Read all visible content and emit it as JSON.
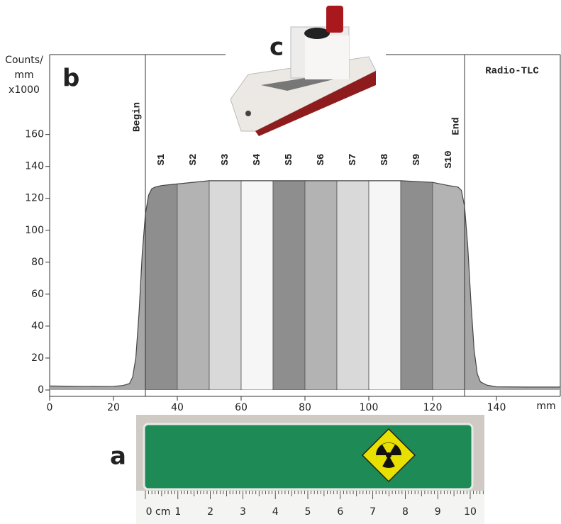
{
  "chart_data": {
    "type": "area",
    "y_label": "Counts/\nmm\nx1000",
    "x_unit": "mm",
    "title": "Radio-TLC",
    "panel_label": "b",
    "x": [
      0,
      5,
      10,
      15,
      20,
      23,
      25,
      26,
      27,
      28,
      29,
      30,
      31,
      32,
      33,
      35,
      40,
      50,
      60,
      70,
      80,
      90,
      100,
      110,
      120,
      125,
      128,
      129,
      130,
      131,
      132,
      133,
      134,
      135,
      137,
      140,
      150,
      160
    ],
    "values": [
      2.5,
      2.4,
      2.3,
      2.2,
      2.3,
      2.8,
      4,
      8,
      20,
      48,
      85,
      110,
      122,
      126,
      127,
      128,
      129,
      131,
      131,
      131,
      131,
      131,
      131,
      131,
      130,
      128,
      127,
      125,
      115,
      90,
      55,
      25,
      10,
      5,
      3,
      2,
      1.8,
      1.8
    ],
    "color": "#444444",
    "fill": "#a6a6a6",
    "markers": [
      {
        "label": "Begin",
        "x": 30
      },
      {
        "label": "End",
        "x": 130
      }
    ],
    "regions": [
      {
        "name": "S1",
        "start": 30,
        "end": 40,
        "color": "#8e8e8e"
      },
      {
        "name": "S2",
        "start": 40,
        "end": 50,
        "color": "#b3b3b3"
      },
      {
        "name": "S3",
        "start": 50,
        "end": 60,
        "color": "#d9d9d9"
      },
      {
        "name": "S4",
        "start": 60,
        "end": 70,
        "color": "#f6f6f6"
      },
      {
        "name": "S5",
        "start": 70,
        "end": 80,
        "color": "#8e8e8e"
      },
      {
        "name": "S6",
        "start": 80,
        "end": 90,
        "color": "#b3b3b3"
      },
      {
        "name": "S7",
        "start": 90,
        "end": 100,
        "color": "#d9d9d9"
      },
      {
        "name": "S8",
        "start": 100,
        "end": 110,
        "color": "#f6f6f6"
      },
      {
        "name": "S9",
        "start": 110,
        "end": 120,
        "color": "#8e8e8e"
      },
      {
        "name": "S10",
        "start": 120,
        "end": 130,
        "color": "#b3b3b3"
      }
    ],
    "xlim": [
      0,
      160
    ],
    "xticks": [
      0,
      20,
      40,
      60,
      80,
      100,
      120,
      140
    ],
    "ylim": [
      -4,
      210
    ],
    "yticks": [
      0,
      20,
      40,
      60,
      80,
      100,
      120,
      140,
      160
    ]
  },
  "photo_plate": {
    "label": "a",
    "ruler_labels": [
      "0 cm",
      "1",
      "2",
      "3",
      "4",
      "5",
      "6",
      "7",
      "8",
      "9",
      "10"
    ]
  },
  "photo_device": {
    "label": "c"
  }
}
